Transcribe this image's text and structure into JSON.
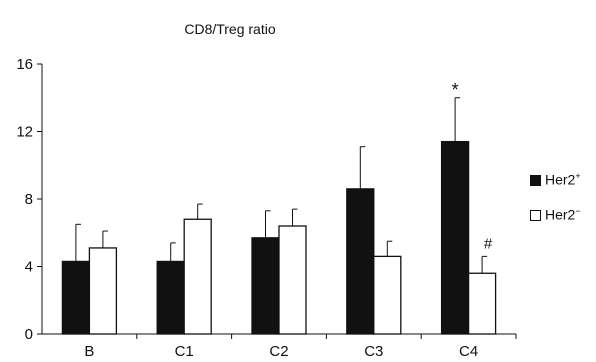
{
  "chart_data": {
    "type": "bar",
    "title": "CD8/Treg ratio",
    "xlabel": "",
    "ylabel": "",
    "categories": [
      "B",
      "C1",
      "C2",
      "C3",
      "C4"
    ],
    "ylim": [
      0,
      16
    ],
    "yticks": [
      0,
      4,
      8,
      12,
      16
    ],
    "error_bars": "one-sided (upper)",
    "series": [
      {
        "name": "Her2+",
        "label_base": "Her2",
        "label_sup": "+",
        "color": "#111111",
        "values": [
          4.3,
          4.3,
          5.7,
          8.6,
          11.4
        ],
        "errors": [
          2.2,
          1.1,
          1.6,
          2.5,
          2.6
        ]
      },
      {
        "name": "Her2−",
        "label_base": "Her2",
        "label_sup": "−",
        "color": "#ffffff",
        "values": [
          5.1,
          6.8,
          6.4,
          4.6,
          3.6
        ],
        "errors": [
          1.0,
          0.9,
          1.0,
          0.9,
          1.0
        ]
      }
    ],
    "annotations": [
      {
        "text": "*",
        "series": 0,
        "category": "C4"
      },
      {
        "text": "#",
        "series": 1,
        "category": "C4"
      }
    ],
    "legend_position": "right",
    "grid": false
  }
}
